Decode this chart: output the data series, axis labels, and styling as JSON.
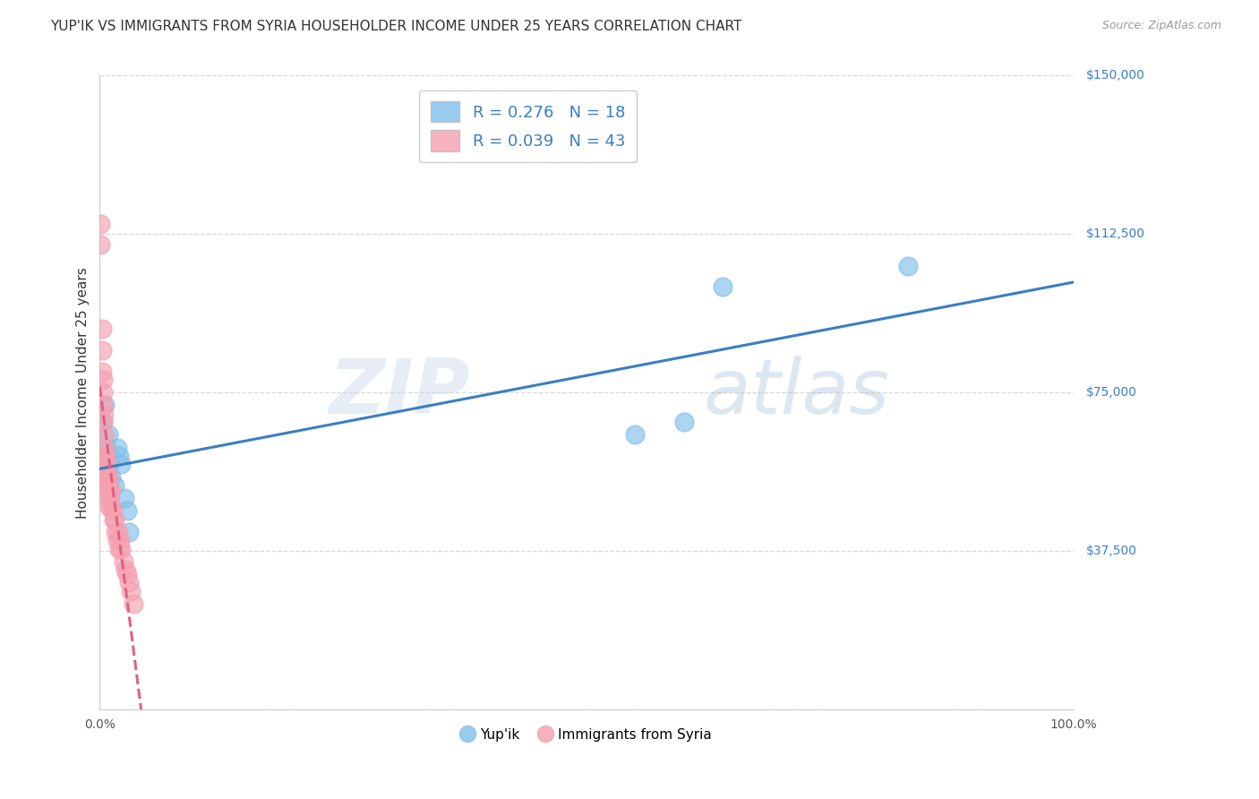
{
  "title": "YUP'IK VS IMMIGRANTS FROM SYRIA HOUSEHOLDER INCOME UNDER 25 YEARS CORRELATION CHART",
  "source": "Source: ZipAtlas.com",
  "ylabel": "Householder Income Under 25 years",
  "xlim": [
    0,
    1.0
  ],
  "ylim": [
    0,
    150000
  ],
  "xticks": [
    0.0,
    0.2,
    0.4,
    0.6,
    0.8,
    1.0
  ],
  "xticklabels_show": [
    "0.0%",
    "",
    "",
    "",
    "",
    "100.0%"
  ],
  "ytick_positions": [
    0,
    37500,
    75000,
    112500,
    150000
  ],
  "ytick_labels": [
    "",
    "$37,500",
    "$75,000",
    "$112,500",
    "$150,000"
  ],
  "grid_color": "#d8d8d8",
  "background_color": "#ffffff",
  "series": [
    {
      "name": "Yup'ik",
      "R": 0.276,
      "N": 18,
      "color": "#7fbfea",
      "trend_color": "#3a7fc1",
      "trend_style": "solid",
      "x": [
        0.003,
        0.005,
        0.007,
        0.008,
        0.009,
        0.01,
        0.012,
        0.015,
        0.018,
        0.02,
        0.022,
        0.025,
        0.028,
        0.03,
        0.55,
        0.6,
        0.64,
        0.83
      ],
      "y": [
        68000,
        72000,
        62000,
        60000,
        65000,
        58000,
        55000,
        53000,
        62000,
        60000,
        58000,
        50000,
        47000,
        42000,
        65000,
        68000,
        100000,
        105000
      ]
    },
    {
      "name": "Immigrants from Syria",
      "R": 0.039,
      "N": 43,
      "color": "#f4a0b0",
      "trend_color": "#e06080",
      "trend_style": "dashed",
      "x": [
        0.001,
        0.001,
        0.002,
        0.002,
        0.002,
        0.003,
        0.003,
        0.003,
        0.003,
        0.004,
        0.004,
        0.004,
        0.005,
        0.005,
        0.005,
        0.006,
        0.006,
        0.007,
        0.007,
        0.008,
        0.008,
        0.009,
        0.009,
        0.01,
        0.01,
        0.011,
        0.012,
        0.012,
        0.013,
        0.014,
        0.015,
        0.016,
        0.018,
        0.019,
        0.02,
        0.021,
        0.022,
        0.024,
        0.026,
        0.028,
        0.03,
        0.032,
        0.035
      ],
      "y": [
        115000,
        110000,
        90000,
        85000,
        80000,
        78000,
        75000,
        72000,
        68000,
        70000,
        65000,
        60000,
        62000,
        58000,
        55000,
        60000,
        57000,
        58000,
        55000,
        55000,
        52000,
        55000,
        50000,
        52000,
        48000,
        50000,
        52000,
        48000,
        47000,
        45000,
        45000,
        42000,
        40000,
        42000,
        38000,
        40000,
        38000,
        35000,
        33000,
        32000,
        30000,
        28000,
        25000
      ]
    }
  ],
  "legend_items": [
    {
      "label": "R = 0.276   N = 18",
      "color": "#7fbfea"
    },
    {
      "label": "R = 0.039   N = 43",
      "color": "#f4a0b0"
    }
  ],
  "bottom_legend": [
    {
      "label": "Yup'ik",
      "color": "#7fbfea"
    },
    {
      "label": "Immigrants from Syria",
      "color": "#f4a0b0"
    }
  ],
  "watermark_zip": "ZIP",
  "watermark_atlas": "atlas",
  "title_fontsize": 11,
  "axis_label_fontsize": 11,
  "tick_fontsize": 10,
  "legend_fontsize": 13
}
